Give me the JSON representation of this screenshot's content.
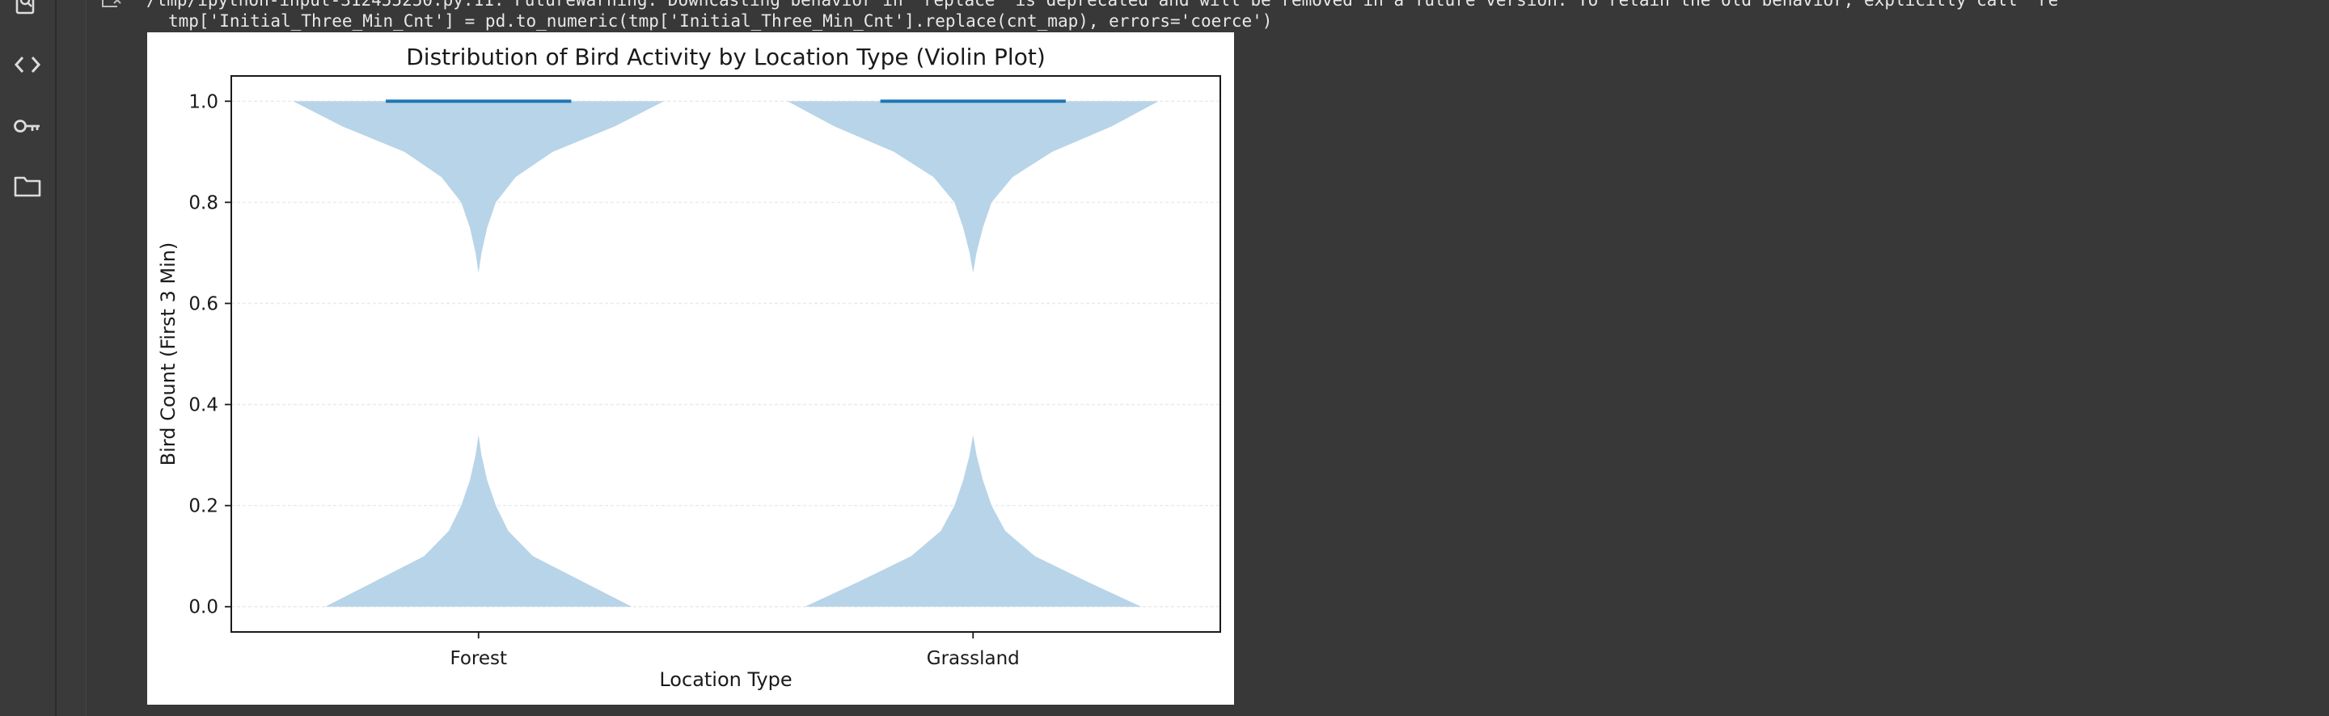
{
  "sidebar": {
    "items": [
      {
        "icon": "search-code-icon"
      },
      {
        "icon": "code-brackets-icon"
      },
      {
        "icon": "key-icon"
      },
      {
        "icon": "folder-icon"
      }
    ]
  },
  "output": {
    "warning_line_1": "/tmp/ipython-input-312455250.py:11: FutureWarning: Downcasting behavior in `replace` is deprecated and will be removed in a future version. To retain the old behavior, explicitly call `re",
    "warning_line_2": "tmp['Initial_Three_Min_Cnt'] = pd.to_numeric(tmp['Initial_Three_Min_Cnt'].replace(cnt_map), errors='coerce')"
  },
  "chart_data": {
    "type": "violin",
    "title": "Distribution of Bird Activity by Location Type (Violin Plot)",
    "xlabel": "Location Type",
    "ylabel": "Bird Count (First 3 Min)",
    "categories": [
      "Forest",
      "Grassland"
    ],
    "ylim": [
      -0.05,
      1.05
    ],
    "yticks": [
      0.0,
      0.2,
      0.4,
      0.6,
      0.8,
      1.0
    ],
    "ytick_labels": [
      "0.0",
      "0.2",
      "0.4",
      "0.6",
      "0.8",
      "1.0"
    ],
    "grid": true,
    "fill_color": "#b8d4e8",
    "median_color": "#1f77b4",
    "violins": [
      {
        "category": "Forest",
        "median": 1.0,
        "profile": [
          {
            "y": 0.0,
            "w": 0.62
          },
          {
            "y": 0.05,
            "w": 0.42
          },
          {
            "y": 0.1,
            "w": 0.22
          },
          {
            "y": 0.15,
            "w": 0.12
          },
          {
            "y": 0.2,
            "w": 0.07
          },
          {
            "y": 0.25,
            "w": 0.035
          },
          {
            "y": 0.3,
            "w": 0.012
          },
          {
            "y": 0.34,
            "w": 0.0
          },
          {
            "y": 0.66,
            "w": 0.0
          },
          {
            "y": 0.7,
            "w": 0.012
          },
          {
            "y": 0.75,
            "w": 0.035
          },
          {
            "y": 0.8,
            "w": 0.07
          },
          {
            "y": 0.85,
            "w": 0.15
          },
          {
            "y": 0.9,
            "w": 0.3
          },
          {
            "y": 0.95,
            "w": 0.55
          },
          {
            "y": 1.0,
            "w": 0.75
          }
        ]
      },
      {
        "category": "Grassland",
        "median": 1.0,
        "profile": [
          {
            "y": 0.0,
            "w": 0.68
          },
          {
            "y": 0.05,
            "w": 0.46
          },
          {
            "y": 0.1,
            "w": 0.25
          },
          {
            "y": 0.15,
            "w": 0.13
          },
          {
            "y": 0.2,
            "w": 0.075
          },
          {
            "y": 0.25,
            "w": 0.04
          },
          {
            "y": 0.3,
            "w": 0.014
          },
          {
            "y": 0.34,
            "w": 0.0
          },
          {
            "y": 0.66,
            "w": 0.0
          },
          {
            "y": 0.7,
            "w": 0.014
          },
          {
            "y": 0.75,
            "w": 0.04
          },
          {
            "y": 0.8,
            "w": 0.075
          },
          {
            "y": 0.85,
            "w": 0.16
          },
          {
            "y": 0.9,
            "w": 0.32
          },
          {
            "y": 0.95,
            "w": 0.56
          },
          {
            "y": 1.0,
            "w": 0.75
          }
        ]
      }
    ]
  }
}
